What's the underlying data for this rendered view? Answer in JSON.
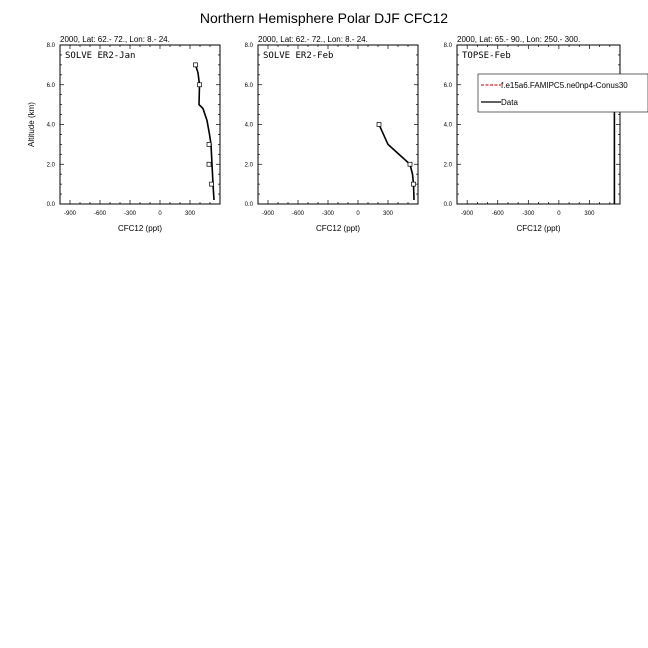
{
  "title": "Northern Hemisphere Polar DJF CFC12",
  "chart_data": [
    {
      "type": "line",
      "subtitle": "2000, Lat: 62.- 72., Lon: 8.- 24.",
      "panel_label": "SOLVE ER2-Jan",
      "xlabel": "CFC12 (ppt)",
      "ylabel": "Altitude (km)",
      "xlim": [
        -1000,
        600
      ],
      "ylim": [
        0,
        8
      ],
      "xticks": [
        -900,
        -600,
        -300,
        0,
        300
      ],
      "xtick_labels": [
        "-900",
        "-600",
        "-300",
        "0",
        "300"
      ],
      "yticks": [
        0,
        2,
        4,
        6,
        8
      ],
      "ytick_labels": [
        "0.0",
        "2.0",
        "4.0",
        "6.0",
        "8.0"
      ],
      "series": [
        {
          "style": "solid",
          "color": "#000000",
          "x": [
            540,
            530,
            520,
            510,
            495,
            470,
            430,
            390,
            395,
            380,
            355
          ],
          "y": [
            0.2,
            1.0,
            2.0,
            3.0,
            3.5,
            4.2,
            4.8,
            5.0,
            6.0,
            6.6,
            7.0
          ]
        }
      ],
      "markers": [
        {
          "x": 355,
          "y": 7.0
        },
        {
          "x": 395,
          "y": 6.0
        },
        {
          "x": 490,
          "y": 3.0
        },
        {
          "x": 490,
          "y": 2.0
        },
        {
          "x": 515,
          "y": 1.0
        }
      ]
    },
    {
      "type": "line",
      "subtitle": "2000, Lat: 62.- 72., Lon: 8.- 24.",
      "panel_label": "SOLVE ER2-Feb",
      "xlabel": "CFC12 (ppt)",
      "ylabel": "",
      "xlim": [
        -1000,
        600
      ],
      "ylim": [
        0,
        8
      ],
      "xticks": [
        -900,
        -600,
        -300,
        0,
        300
      ],
      "xtick_labels": [
        "-900",
        "-600",
        "-300",
        "0",
        "300"
      ],
      "yticks": [
        0,
        2,
        4,
        6,
        8
      ],
      "ytick_labels": [
        "0.0",
        "2.0",
        "4.0",
        "6.0",
        "8.0"
      ],
      "series": [
        {
          "style": "solid",
          "color": "#000000",
          "x": [
            560,
            555,
            545,
            520,
            300,
            210
          ],
          "y": [
            0.2,
            1.0,
            1.5,
            2.0,
            3.0,
            4.0
          ]
        }
      ],
      "markers": [
        {
          "x": 210,
          "y": 4.0
        },
        {
          "x": 520,
          "y": 2.0
        },
        {
          "x": 555,
          "y": 1.0
        }
      ]
    },
    {
      "type": "line",
      "subtitle": "2000, Lat: 65.- 90., Lon: 250.- 300.",
      "panel_label": "TOPSE-Feb",
      "xlabel": "CFC12 (ppt)",
      "ylabel": "",
      "xlim": [
        -1000,
        600
      ],
      "ylim": [
        0,
        8
      ],
      "xticks": [
        -900,
        -600,
        -300,
        0,
        300
      ],
      "xtick_labels": [
        "-900",
        "-600",
        "-300",
        "0",
        "300"
      ],
      "yticks": [
        0,
        2,
        4,
        6,
        8
      ],
      "ytick_labels": [
        "0.0",
        "2.0",
        "4.0",
        "6.0",
        "8.0"
      ],
      "series": [
        {
          "style": "solid",
          "color": "#000000",
          "x": [
            545,
            545
          ],
          "y": [
            0.0,
            6.0
          ]
        }
      ],
      "markers": [],
      "legend": {
        "placement": "top-right",
        "entries": [
          {
            "label": "f.e15a6.FAMIPC5.ne0np4-Conus30",
            "color": "#d62728",
            "style": "dashed"
          },
          {
            "label": "Data",
            "color": "#000000",
            "style": "solid"
          }
        ]
      }
    }
  ]
}
